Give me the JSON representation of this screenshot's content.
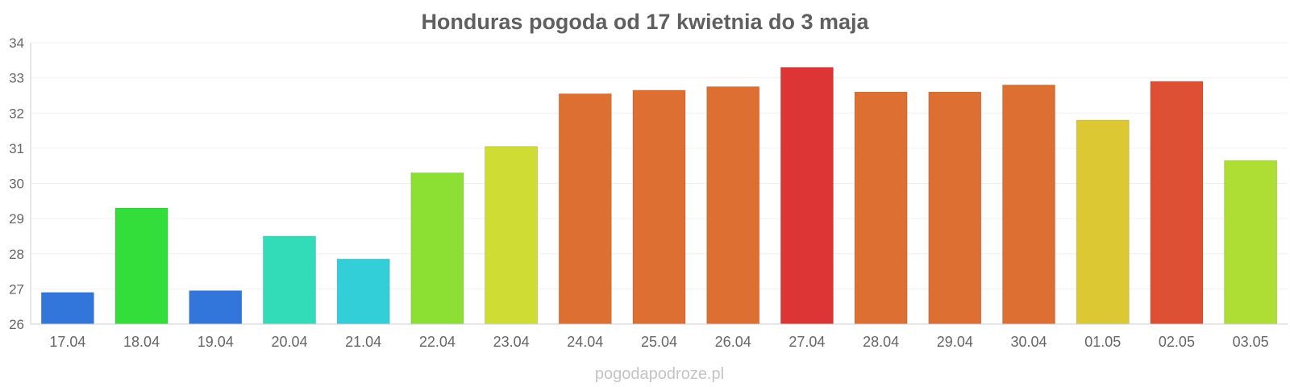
{
  "chart_data": {
    "type": "bar",
    "title": "Honduras pogoda od 17 kwietnia do 3 maja",
    "xlabel": "",
    "ylabel": "",
    "ylim": [
      26,
      34
    ],
    "yticks": [
      "26",
      "27",
      "28",
      "29",
      "30",
      "31",
      "32",
      "33",
      "34"
    ],
    "grid": true,
    "categories": [
      "17.04",
      "18.04",
      "19.04",
      "20.04",
      "21.04",
      "22.04",
      "23.04",
      "24.04",
      "25.04",
      "26.04",
      "27.04",
      "28.04",
      "29.04",
      "30.04",
      "01.05",
      "02.05",
      "03.05"
    ],
    "values": [
      26.9,
      29.3,
      26.95,
      28.5,
      27.85,
      30.3,
      31.05,
      32.55,
      32.65,
      32.75,
      33.3,
      32.6,
      32.6,
      32.8,
      31.8,
      32.9,
      30.65
    ],
    "colors": [
      "#3376db",
      "#33de3b",
      "#3376db",
      "#33dcb8",
      "#33cfd8",
      "#8cdf33",
      "#cfdc33",
      "#de6f33",
      "#de6f33",
      "#de6f33",
      "#dd3535",
      "#de6f33",
      "#de6f33",
      "#de6f33",
      "#dcc833",
      "#dd5033",
      "#aedd33"
    ]
  },
  "watermark": "pogodapodroze.pl"
}
